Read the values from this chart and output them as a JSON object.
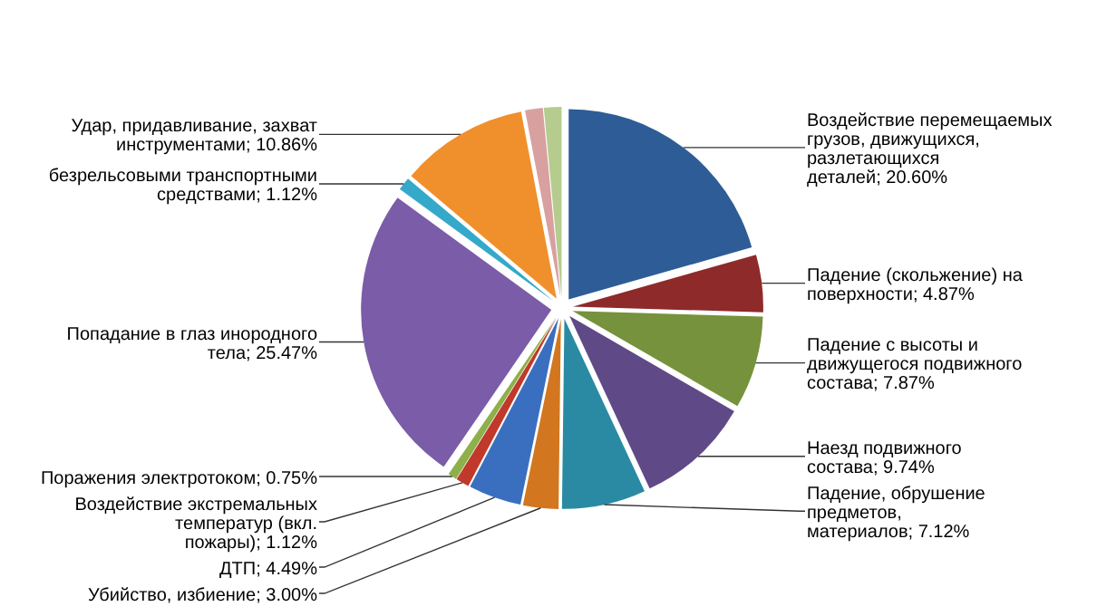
{
  "chart_data": {
    "type": "pie",
    "categories": [
      "Воздействие перемещаемых грузов, движущихся, разлетающихся деталей",
      "Падение (скольжение) на поверхности",
      "Падение с высоты и движущегося подвижного состава",
      "Наезд подвижного состава",
      "Падение, обрушение предметов, материалов",
      "Убийство, избиение",
      "ДТП",
      "Воздействие экстремальных температур (вкл. пожары)",
      "Поражения электротоком",
      "Попадание в глаз инородного тела",
      "безрельсовыми транспортными средствами",
      "Удар, придавливание, захват инструментами",
      null,
      null
    ],
    "values": [
      20.6,
      4.87,
      7.87,
      9.74,
      7.12,
      3.0,
      4.49,
      1.12,
      0.75,
      25.47,
      1.12,
      10.86,
      1.5,
      1.49
    ],
    "value_labels": [
      "20.60%",
      "4.87%",
      "7.87%",
      "9.74%",
      "7.12%",
      "3.00%",
      "4.49%",
      "1.12%",
      "0.75%",
      "25.47%",
      "1.12%",
      "10.86%",
      null,
      null
    ],
    "colors": [
      "#2e5c96",
      "#8e2a2a",
      "#76923c",
      "#5f4a87",
      "#2a8aa3",
      "#d2761f",
      "#3a6fc0",
      "#c0392b",
      "#8db04a",
      "#7a5ca8",
      "#35a9c9",
      "#f0902c",
      "#d9a0a0",
      "#b5cc8e"
    ]
  }
}
